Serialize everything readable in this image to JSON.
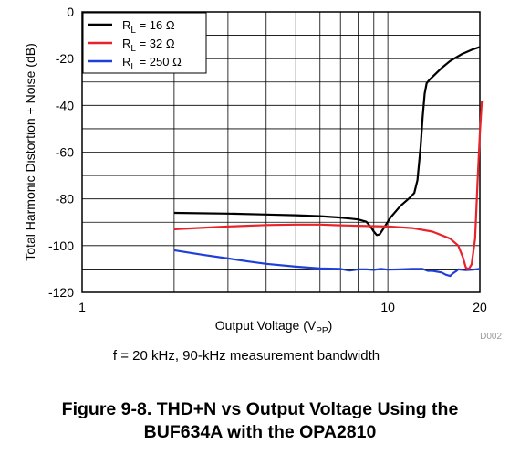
{
  "chart_data": {
    "type": "line",
    "xlabel_main": "Output Voltage (V",
    "xlabel_sub": "PP",
    "xlabel_end": ")",
    "ylabel": "Total Harmonic Distortion + Noise (dB)",
    "xscale": "log",
    "xlim": [
      1,
      20
    ],
    "ylim": [
      -120,
      0
    ],
    "grid": true,
    "legend_position": "top-left",
    "x_ticks": [
      {
        "value": 1,
        "label": "1"
      },
      {
        "value": 10,
        "label": "10"
      },
      {
        "value": 20,
        "label": "20"
      }
    ],
    "y_ticks": [
      {
        "value": 0,
        "label": "0"
      },
      {
        "value": -20,
        "label": "-20"
      },
      {
        "value": -40,
        "label": "-40"
      },
      {
        "value": -60,
        "label": "-60"
      },
      {
        "value": -80,
        "label": "-80"
      },
      {
        "value": -100,
        "label": "-100"
      },
      {
        "value": -120,
        "label": "-120"
      }
    ],
    "series": [
      {
        "name": "R_L = 16 Ω",
        "label_main": "R",
        "label_sub": "L",
        "label_rest": " = 16 Ω",
        "color": "#000000",
        "points": [
          [
            2.0,
            -86
          ],
          [
            3.0,
            -86.3
          ],
          [
            4.0,
            -86.7
          ],
          [
            5.0,
            -87
          ],
          [
            6.0,
            -87.4
          ],
          [
            7.0,
            -88
          ],
          [
            8.0,
            -88.8
          ],
          [
            8.5,
            -89.8
          ],
          [
            8.8,
            -92
          ],
          [
            9.0,
            -94
          ],
          [
            9.2,
            -95.5
          ],
          [
            9.4,
            -95.2
          ],
          [
            9.7,
            -92.5
          ],
          [
            10.2,
            -88
          ],
          [
            11.0,
            -83
          ],
          [
            11.8,
            -79.5
          ],
          [
            12.2,
            -77.5
          ],
          [
            12.5,
            -72
          ],
          [
            12.8,
            -58
          ],
          [
            13.0,
            -45
          ],
          [
            13.2,
            -35
          ],
          [
            13.4,
            -30.5
          ],
          [
            13.7,
            -29
          ],
          [
            14.2,
            -27
          ],
          [
            15.0,
            -24
          ],
          [
            16.0,
            -21
          ],
          [
            17.5,
            -18
          ],
          [
            19.0,
            -16
          ],
          [
            20.0,
            -15
          ]
        ]
      },
      {
        "name": "R_L = 32 Ω",
        "label_main": "R",
        "label_sub": "L",
        "label_rest": " = 32 Ω",
        "color": "#e8232a",
        "points": [
          [
            2.0,
            -93
          ],
          [
            3.0,
            -91.8
          ],
          [
            4.0,
            -91.2
          ],
          [
            5.0,
            -91
          ],
          [
            6.0,
            -91
          ],
          [
            7.0,
            -91.3
          ],
          [
            8.0,
            -91.5
          ],
          [
            10.0,
            -91.8
          ],
          [
            12.0,
            -92.5
          ],
          [
            14.0,
            -94
          ],
          [
            16.0,
            -97
          ],
          [
            17.0,
            -100
          ],
          [
            17.6,
            -105
          ],
          [
            18.0,
            -109.5
          ],
          [
            18.4,
            -110
          ],
          [
            18.8,
            -108
          ],
          [
            19.3,
            -97
          ],
          [
            19.7,
            -70
          ],
          [
            20.0,
            -52
          ],
          [
            20.3,
            -38
          ]
        ]
      },
      {
        "name": "R_L = 250 Ω",
        "label_main": "R",
        "label_sub": "L",
        "label_rest": " = 250 Ω",
        "color": "#1f3fd6",
        "points": [
          [
            2.0,
            -102
          ],
          [
            2.5,
            -104
          ],
          [
            3.0,
            -105.5
          ],
          [
            3.5,
            -106.8
          ],
          [
            4.0,
            -107.8
          ],
          [
            5.0,
            -109
          ],
          [
            6.0,
            -109.8
          ],
          [
            7.0,
            -110
          ],
          [
            7.5,
            -110.7
          ],
          [
            8.0,
            -110.2
          ],
          [
            8.5,
            -110.2
          ],
          [
            9.0,
            -110.4
          ],
          [
            9.5,
            -110
          ],
          [
            10.0,
            -110.3
          ],
          [
            11.0,
            -110.2
          ],
          [
            12.0,
            -110
          ],
          [
            13.0,
            -110
          ],
          [
            13.5,
            -110.8
          ],
          [
            14.0,
            -110.8
          ],
          [
            15.0,
            -111.5
          ],
          [
            15.5,
            -112.5
          ],
          [
            16.0,
            -113
          ],
          [
            16.3,
            -112
          ],
          [
            16.7,
            -111
          ],
          [
            17.0,
            -110.2
          ],
          [
            18.0,
            -110.5
          ],
          [
            19.0,
            -110.3
          ],
          [
            20.0,
            -110
          ]
        ]
      }
    ],
    "figure_code": "D002"
  },
  "note": "f = 20 kHz, 90-kHz measurement bandwidth",
  "caption_line1": "Figure 9-8. THD+N vs Output Voltage Using the",
  "caption_line2": "BUF634A with the OPA2810"
}
